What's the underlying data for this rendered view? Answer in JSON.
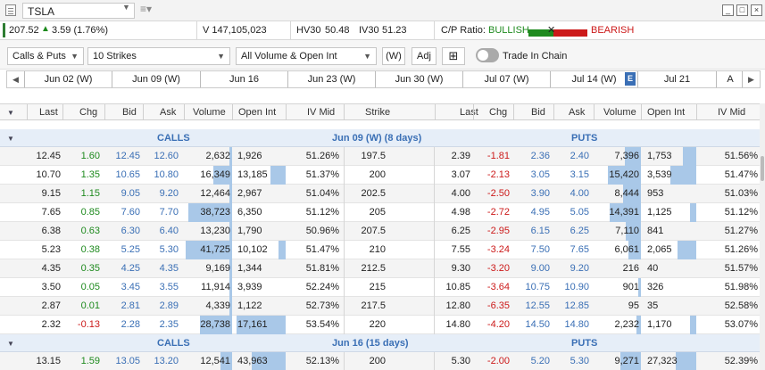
{
  "title_bar": {
    "symbol": "TSLA",
    "window_buttons": [
      "minimize-icon",
      "maximize-icon",
      "close-icon"
    ]
  },
  "info_bar": {
    "last_price": "207.52",
    "change": "3.59 (1.76%)",
    "volume": "V 147,105,023",
    "hv30": "50.48",
    "iv30": "51.23",
    "hv30_label": "HV30",
    "iv30_label": "IV30",
    "cp_ratio_label": "C/P Ratio:",
    "bullish": "BULLISH",
    "bearish": "BEARISH",
    "colors": {
      "bull": "#1e8a1e",
      "bear": "#cc1a1a"
    }
  },
  "controls": {
    "type_select": "Calls & Puts",
    "strikes_select": "10 Strikes",
    "filter_select": "All Volume & Open Int",
    "w_button": "(W)",
    "adj_button": "Adj",
    "trade_in_chain": "Trade In Chain"
  },
  "date_tabs": [
    "Jun 02 (W)",
    "Jun 09 (W)",
    "Jun 16",
    "Jun 23 (W)",
    "Jun 30 (W)",
    "Jul 07 (W)",
    "Jul 14 (W)",
    "Jul 21",
    "A"
  ],
  "earnings_badge": "E",
  "columns": {
    "calls": [
      "Last",
      "Chg",
      "Bid",
      "Ask",
      "Volume",
      "Open Int",
      "IV Mid"
    ],
    "strike": "Strike",
    "puts": [
      "Last",
      "Chg",
      "Bid",
      "Ask",
      "Volume",
      "Open Int",
      "IV Mid"
    ]
  },
  "groups": [
    {
      "calls_label": "CALLS",
      "expiry_label": "Jun 09 (W) (8 days)",
      "puts_label": "PUTS",
      "rows": [
        {
          "c_last": "12.45",
          "c_chg": "1.60",
          "c_bid": "12.45",
          "c_ask": "12.60",
          "c_vol": "2,632",
          "c_oi": "1,926",
          "c_iv": "51.26%",
          "strike": "197.5",
          "p_last": "2.39",
          "p_chg": "-1.81",
          "p_bid": "2.36",
          "p_ask": "2.40",
          "p_vol": "7,396",
          "p_oi": "1,753",
          "p_iv": "51.56%",
          "c_vol_frac": 0.06,
          "c_oi_frac": 0.0,
          "p_vol_frac": 0.35,
          "p_oi_frac": 0.25
        },
        {
          "c_last": "10.70",
          "c_chg": "1.35",
          "c_bid": "10.65",
          "c_ask": "10.80",
          "c_vol": "16,349",
          "c_oi": "13,185",
          "c_iv": "51.37%",
          "strike": "200",
          "p_last": "3.07",
          "p_chg": "-2.13",
          "p_bid": "3.05",
          "p_ask": "3.15",
          "p_vol": "15,420",
          "p_oi": "3,539",
          "p_iv": "51.47%",
          "c_vol_frac": 0.4,
          "c_oi_frac": 0.3,
          "p_vol_frac": 0.72,
          "p_oi_frac": 0.5
        },
        {
          "c_last": "9.15",
          "c_chg": "1.15",
          "c_bid": "9.05",
          "c_ask": "9.20",
          "c_vol": "12,464",
          "c_oi": "2,967",
          "c_iv": "51.04%",
          "strike": "202.5",
          "p_last": "4.00",
          "p_chg": "-2.50",
          "p_bid": "3.90",
          "p_ask": "4.00",
          "p_vol": "8,444",
          "p_oi": "953",
          "p_iv": "51.03%",
          "c_vol_frac": 0.06,
          "c_oi_frac": 0.0,
          "p_vol_frac": 0.39,
          "p_oi_frac": 0.0
        },
        {
          "c_last": "7.65",
          "c_chg": "0.85",
          "c_bid": "7.60",
          "c_ask": "7.70",
          "c_vol": "38,723",
          "c_oi": "6,350",
          "c_iv": "51.12%",
          "strike": "205",
          "p_last": "4.98",
          "p_chg": "-2.72",
          "p_bid": "4.95",
          "p_ask": "5.05",
          "p_vol": "14,391",
          "p_oi": "1,125",
          "p_iv": "51.12%",
          "c_vol_frac": 0.95,
          "c_oi_frac": 0.0,
          "p_vol_frac": 0.68,
          "p_oi_frac": 0.12
        },
        {
          "c_last": "6.38",
          "c_chg": "0.63",
          "c_bid": "6.30",
          "c_ask": "6.40",
          "c_vol": "13,230",
          "c_oi": "1,790",
          "c_iv": "50.96%",
          "strike": "207.5",
          "p_last": "6.25",
          "p_chg": "-2.95",
          "p_bid": "6.15",
          "p_ask": "6.25",
          "p_vol": "7,110",
          "p_oi": "841",
          "p_iv": "51.27%",
          "c_vol_frac": 0.06,
          "c_oi_frac": 0.0,
          "p_vol_frac": 0.32,
          "p_oi_frac": 0.0
        },
        {
          "c_last": "5.23",
          "c_chg": "0.38",
          "c_bid": "5.25",
          "c_ask": "5.30",
          "c_vol": "41,725",
          "c_oi": "10,102",
          "c_iv": "51.47%",
          "strike": "210",
          "p_last": "7.55",
          "p_chg": "-3.24",
          "p_bid": "7.50",
          "p_ask": "7.65",
          "p_vol": "6,061",
          "p_oi": "2,065",
          "p_iv": "51.26%",
          "c_vol_frac": 1.0,
          "c_oi_frac": 0.14,
          "p_vol_frac": 0.26,
          "p_oi_frac": 0.36
        },
        {
          "c_last": "4.35",
          "c_chg": "0.35",
          "c_bid": "4.25",
          "c_ask": "4.35",
          "c_vol": "9,169",
          "c_oi": "1,344",
          "c_iv": "51.81%",
          "strike": "212.5",
          "p_last": "9.30",
          "p_chg": "-3.20",
          "p_bid": "9.00",
          "p_ask": "9.20",
          "p_vol": "216",
          "p_oi": "40",
          "p_iv": "51.57%",
          "c_vol_frac": 0.06,
          "c_oi_frac": 0.0,
          "p_vol_frac": 0.0,
          "p_oi_frac": 0.0
        },
        {
          "c_last": "3.50",
          "c_chg": "0.05",
          "c_bid": "3.45",
          "c_ask": "3.55",
          "c_vol": "11,914",
          "c_oi": "3,939",
          "c_iv": "52.24%",
          "strike": "215",
          "p_last": "10.85",
          "p_chg": "-3.64",
          "p_bid": "10.75",
          "p_ask": "10.90",
          "p_vol": "901",
          "p_oi": "326",
          "p_iv": "51.98%",
          "c_vol_frac": 0.06,
          "c_oi_frac": 0.0,
          "p_vol_frac": 0.05,
          "p_oi_frac": 0.0
        },
        {
          "c_last": "2.87",
          "c_chg": "0.01",
          "c_bid": "2.81",
          "c_ask": "2.89",
          "c_vol": "4,339",
          "c_oi": "1,122",
          "c_iv": "52.73%",
          "strike": "217.5",
          "p_last": "12.80",
          "p_chg": "-6.35",
          "p_bid": "12.55",
          "p_ask": "12.85",
          "p_vol": "95",
          "p_oi": "35",
          "p_iv": "52.58%",
          "c_vol_frac": 0.06,
          "c_oi_frac": 0.0,
          "p_vol_frac": 0.0,
          "p_oi_frac": 0.0
        },
        {
          "c_last": "2.32",
          "c_chg": "-0.13",
          "c_bid": "2.28",
          "c_ask": "2.35",
          "c_vol": "28,738",
          "c_oi": "17,161",
          "c_iv": "53.54%",
          "strike": "220",
          "p_last": "14.80",
          "p_chg": "-4.20",
          "p_bid": "14.50",
          "p_ask": "14.80",
          "p_vol": "2,232",
          "p_oi": "1,170",
          "p_iv": "53.07%",
          "c_vol_frac": 0.7,
          "c_oi_frac": 0.95,
          "p_vol_frac": 0.09,
          "p_oi_frac": 0.12
        }
      ]
    },
    {
      "calls_label": "CALLS",
      "expiry_label": "Jun 16 (15 days)",
      "puts_label": "PUTS",
      "rows": [
        {
          "c_last": "13.15",
          "c_chg": "1.59",
          "c_bid": "13.05",
          "c_ask": "13.20",
          "c_vol": "12,541",
          "c_oi": "43,963",
          "c_iv": "52.13%",
          "strike": "200",
          "p_last": "5.30",
          "p_chg": "-2.00",
          "p_bid": "5.20",
          "p_ask": "5.30",
          "p_vol": "9,271",
          "p_oi": "27,323",
          "p_iv": "52.39%",
          "c_vol_frac": 0.25,
          "c_oi_frac": 0.65,
          "p_vol_frac": 0.45,
          "p_oi_frac": 0.4
        }
      ]
    }
  ]
}
